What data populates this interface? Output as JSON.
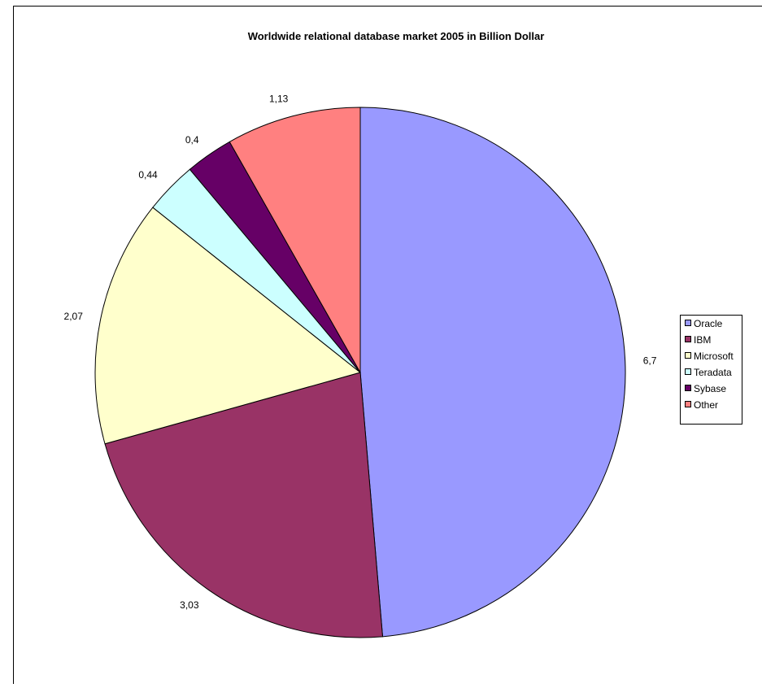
{
  "chart_data": {
    "type": "pie",
    "title": "Worldwide relational database market 2005 in Billion Dollar",
    "categories": [
      "Oracle",
      "IBM",
      "Microsoft",
      "Teradata",
      "Sybase",
      "Other"
    ],
    "values": [
      6.7,
      3.03,
      2.07,
      0.44,
      0.4,
      1.13
    ],
    "data_labels": [
      "6,7",
      "3,03",
      "2,07",
      "0,44",
      "0,4",
      "1,13"
    ],
    "colors": [
      "#9999FF",
      "#993366",
      "#FFFFCC",
      "#CCFFFF",
      "#660066",
      "#FF8080"
    ],
    "legend_position": "right",
    "start_angle": "top, clockwise"
  }
}
